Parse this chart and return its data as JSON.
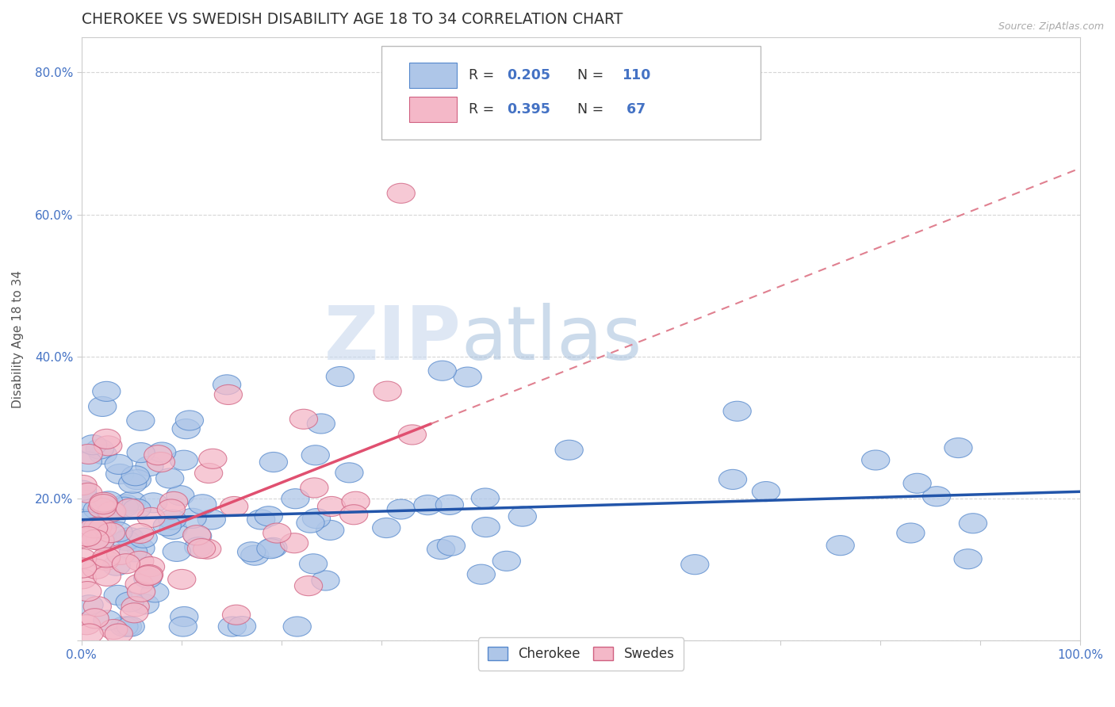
{
  "title": "CHEROKEE VS SWEDISH DISABILITY AGE 18 TO 34 CORRELATION CHART",
  "source": "Source: ZipAtlas.com",
  "ylabel": "Disability Age 18 to 34",
  "title_color": "#333333",
  "title_fontsize": 13.5,
  "background_color": "#ffffff",
  "watermark_zip": "ZIP",
  "watermark_atlas": "atlas",
  "xlim": [
    0.0,
    1.0
  ],
  "ylim": [
    0.0,
    0.85
  ],
  "cherokee_color": "#aec6e8",
  "cherokee_edge": "#5588cc",
  "swedes_color": "#f4b8c8",
  "swedes_edge": "#d06080",
  "line_cherokee_color": "#2255aa",
  "line_swedes_solid_color": "#e05070",
  "line_swedes_dash_color": "#e08090",
  "grid_color": "#cccccc"
}
